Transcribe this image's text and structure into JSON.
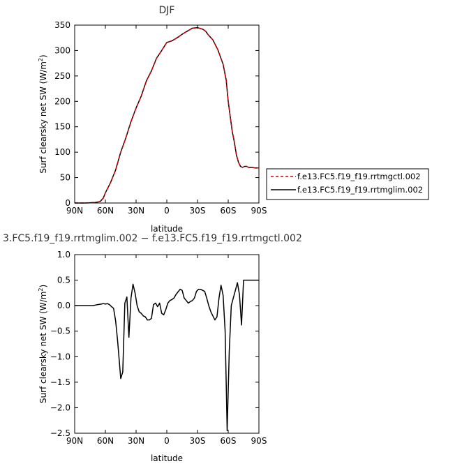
{
  "chart_data": [
    {
      "type": "line",
      "title": "DJF",
      "xlabel": "latitude",
      "ylabel": "Surf clearsky net SW (W/m2)",
      "ylabel_main": "Surf clearsky net SW (W/m",
      "ylabel_sup": "2",
      "ylabel_tail": ")",
      "xlim": [
        90,
        -90
      ],
      "ylim": [
        0,
        350
      ],
      "xticks": [
        {
          "value": 90,
          "label": "90N"
        },
        {
          "value": 60,
          "label": "60N"
        },
        {
          "value": 30,
          "label": "30N"
        },
        {
          "value": 0,
          "label": "0"
        },
        {
          "value": -30,
          "label": "30S"
        },
        {
          "value": -60,
          "label": "60S"
        },
        {
          "value": -90,
          "label": "90S"
        }
      ],
      "yticks": [
        {
          "value": 0,
          "label": "0"
        },
        {
          "value": 50,
          "label": "50"
        },
        {
          "value": 100,
          "label": "100"
        },
        {
          "value": 150,
          "label": "150"
        },
        {
          "value": 200,
          "label": "200"
        },
        {
          "value": 250,
          "label": "250"
        },
        {
          "value": 300,
          "label": "300"
        },
        {
          "value": 350,
          "label": "350"
        }
      ],
      "legend_position": "right",
      "series": [
        {
          "name": "f.e13.FC5.f19_f19.rrtmgctl.002",
          "color": "#cc0000",
          "dash": true,
          "x": [
            90,
            80,
            70,
            65,
            62,
            60,
            55,
            50,
            45,
            40,
            35,
            30,
            25,
            20,
            15,
            10,
            5,
            0,
            -5,
            -10,
            -15,
            -20,
            -25,
            -30,
            -35,
            -38,
            -40,
            -45,
            -50,
            -55,
            -58,
            -60,
            -62,
            -64,
            -66,
            -68,
            -70,
            -72,
            -74,
            -76,
            -78,
            -80,
            -82,
            -84,
            -86,
            -88,
            -90
          ],
          "y": [
            0,
            0,
            1,
            3,
            10,
            20,
            40,
            65,
            100,
            128,
            160,
            187,
            210,
            240,
            260,
            285,
            300,
            316,
            319,
            325,
            332,
            338,
            344,
            345,
            342,
            338,
            332,
            321,
            301,
            273,
            242,
            200,
            170,
            140,
            120,
            95,
            80,
            72,
            70,
            72,
            72,
            70,
            70,
            70,
            69,
            69,
            69
          ]
        },
        {
          "name": "f.e13.FC5.f19_f19.rrtmglim.002",
          "color": "#000000",
          "dash": false,
          "x": [
            90,
            80,
            70,
            65,
            62,
            60,
            55,
            50,
            45,
            40,
            35,
            30,
            25,
            20,
            15,
            10,
            5,
            0,
            -5,
            -10,
            -15,
            -20,
            -25,
            -30,
            -35,
            -38,
            -40,
            -45,
            -50,
            -55,
            -58,
            -60,
            -62,
            -64,
            -66,
            -68,
            -70,
            -72,
            -74,
            -76,
            -78,
            -80,
            -82,
            -84,
            -86,
            -88,
            -90
          ],
          "y": [
            0,
            0,
            1,
            3,
            10,
            20,
            40,
            65,
            100,
            128,
            160,
            187,
            210,
            240,
            260,
            285,
            300,
            316,
            319,
            325,
            332,
            338,
            344,
            345,
            342,
            338,
            332,
            321,
            301,
            273,
            242,
            200,
            170,
            140,
            120,
            95,
            80,
            72,
            70,
            72,
            72,
            70,
            70,
            70,
            69,
            69,
            69
          ]
        }
      ]
    },
    {
      "type": "line",
      "title": "3.FC5.f19_f19.rrtmglim.002 − f.e13.FC5.f19_f19.rrtmgctl.002",
      "xlabel": "latitude",
      "ylabel": "Surf clearsky net SW (W/m2)",
      "ylabel_main": "Surf clearsky net SW (W/m",
      "ylabel_sup": "2",
      "ylabel_tail": ")",
      "xlim": [
        90,
        -90
      ],
      "ylim": [
        -2.5,
        1.0
      ],
      "xticks": [
        {
          "value": 90,
          "label": "90N"
        },
        {
          "value": 60,
          "label": "60N"
        },
        {
          "value": 30,
          "label": "30N"
        },
        {
          "value": 0,
          "label": "0"
        },
        {
          "value": -30,
          "label": "30S"
        },
        {
          "value": -60,
          "label": "60S"
        },
        {
          "value": -90,
          "label": "90S"
        }
      ],
      "yticks": [
        {
          "value": 1.0,
          "label": "1.0"
        },
        {
          "value": 0.5,
          "label": "0.5"
        },
        {
          "value": 0.0,
          "label": "0.0"
        },
        {
          "value": -0.5,
          "label": "−0.5"
        },
        {
          "value": -1.0,
          "label": "−1.0"
        },
        {
          "value": -1.5,
          "label": "−1.5"
        },
        {
          "value": -2.0,
          "label": "−2.0"
        },
        {
          "value": -2.5,
          "label": "−2.5"
        }
      ],
      "series": [
        {
          "name": "",
          "color": "#000000",
          "dash": false,
          "x": [
            90,
            72,
            68,
            64,
            62,
            60,
            58,
            56,
            54,
            52,
            50,
            48,
            45,
            43,
            41,
            39,
            37,
            35,
            33,
            31,
            29,
            27,
            25,
            23,
            21,
            19,
            17,
            15,
            13,
            11,
            9,
            7,
            5,
            3,
            1,
            -1,
            -3,
            -5,
            -7,
            -9,
            -11,
            -13,
            -15,
            -17,
            -19,
            -21,
            -23,
            -25,
            -27,
            -29,
            -31,
            -33,
            -35,
            -37,
            -39,
            -41,
            -43,
            -45,
            -47,
            -49,
            -51,
            -53,
            -55,
            -57,
            -59,
            -61,
            -63,
            -65,
            -67,
            -69,
            -71,
            -73,
            -75,
            -77,
            -79,
            -81,
            -83,
            -85,
            -87,
            -89,
            -90
          ],
          "y": [
            0.0,
            0.0,
            0.02,
            0.03,
            0.04,
            0.03,
            0.04,
            0.02,
            -0.02,
            -0.05,
            -0.3,
            -0.7,
            -1.43,
            -1.3,
            0.05,
            0.17,
            -0.62,
            0.15,
            0.42,
            0.25,
            0.0,
            -0.12,
            -0.15,
            -0.2,
            -0.22,
            -0.28,
            -0.28,
            -0.25,
            0.02,
            0.05,
            -0.02,
            0.05,
            -0.15,
            -0.18,
            -0.08,
            0.05,
            0.1,
            0.12,
            0.15,
            0.22,
            0.27,
            0.32,
            0.3,
            0.15,
            0.1,
            0.05,
            0.08,
            0.1,
            0.15,
            0.28,
            0.32,
            0.32,
            0.3,
            0.28,
            0.15,
            0.0,
            -0.12,
            -0.2,
            -0.28,
            -0.22,
            0.15,
            0.4,
            0.2,
            -0.5,
            -2.45,
            -0.9,
            0.0,
            0.15,
            0.3,
            0.45,
            0.22,
            -0.38,
            0.5,
            0.5,
            0.5,
            0.5,
            0.5,
            0.5,
            0.5,
            0.5,
            0.5
          ]
        }
      ]
    }
  ]
}
